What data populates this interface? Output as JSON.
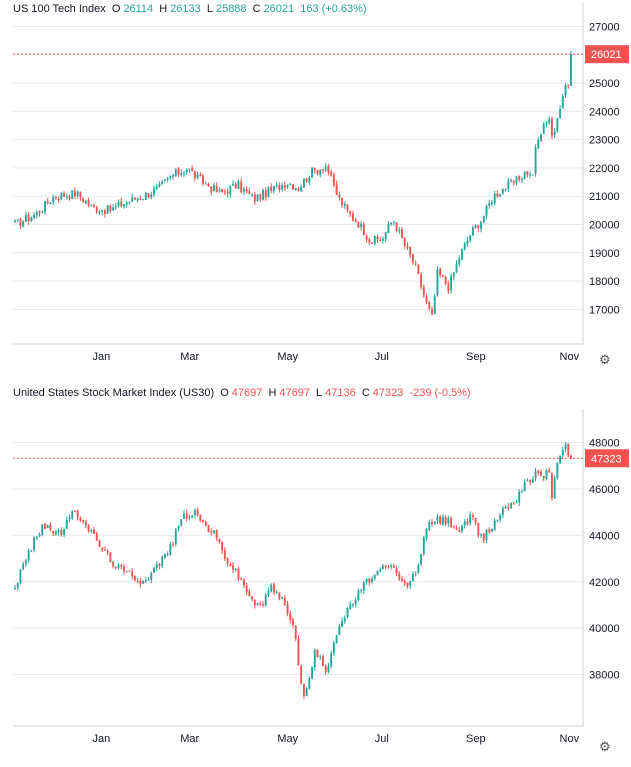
{
  "colors": {
    "up": "#26a69a",
    "down": "#ef5350",
    "grid": "#e6e9ef",
    "axis": "#cdd1d8",
    "text": "#131722",
    "badge": "#ef5350"
  },
  "chart_data": [
    {
      "type": "candlestick",
      "title": "US 100 Tech Index",
      "ohlc": {
        "o_label": "O",
        "o": "26114",
        "h_label": "H",
        "h": "26133",
        "l_label": "L",
        "l": "25888",
        "c_label": "C",
        "c": "26021",
        "change": "163 (+0.63%)"
      },
      "y_ticks": [
        17000,
        18000,
        19000,
        20000,
        21000,
        22000,
        23000,
        24000,
        25000,
        26000,
        27000
      ],
      "x_ticks": [
        "Jan",
        "Mar",
        "May",
        "Jul",
        "Sep",
        "Nov"
      ],
      "ylim": [
        16200,
        27300
      ],
      "last_price": 26021,
      "last_price_label": "26021",
      "closes": [
        20000,
        20400,
        21000,
        21100,
        20600,
        20500,
        20800,
        21000,
        21300,
        21700,
        22000,
        21600,
        21100,
        21400,
        20900,
        21200,
        21500,
        21300,
        21800,
        22100,
        21500,
        21000,
        20400,
        20000,
        19400,
        19500,
        20200,
        19300,
        18500,
        17200,
        16700,
        18300,
        17800,
        18900,
        19700,
        20200,
        21000,
        21300,
        21500,
        21700,
        21900,
        21600,
        22500,
        22900,
        23200,
        23400,
        23700,
        23900,
        23200,
        23100,
        23700,
        24200,
        24600,
        24800,
        25000,
        24600,
        25200,
        26000,
        26021
      ],
      "x_norm": [
        0,
        0.04,
        0.07,
        0.11,
        0.14,
        0.17,
        0.2,
        0.23,
        0.26,
        0.28,
        0.31,
        0.33,
        0.37,
        0.4,
        0.43,
        0.46,
        0.49,
        0.51,
        0.53,
        0.56,
        0.57,
        0.58,
        0.6,
        0.62,
        0.64,
        0.66,
        0.68,
        0.7,
        0.72,
        0.74,
        0.75,
        0.76,
        0.78,
        0.8,
        0.82,
        0.84,
        0.86,
        0.88,
        0.9,
        0.91,
        0.92,
        0.93,
        0.935,
        0.94,
        0.945,
        0.95,
        0.955,
        0.96,
        0.965,
        0.97,
        0.975,
        0.98,
        0.984,
        0.988,
        0.991,
        0.993,
        0.996,
        0.998,
        1
      ]
    },
    {
      "type": "candlestick",
      "title": "United States Stock Market Index (US30)",
      "ohlc": {
        "o_label": "O",
        "o": "47697",
        "h_label": "H",
        "h": "47697",
        "l_label": "L",
        "l": "47136",
        "c_label": "C",
        "c": "47323",
        "change": "-239 (-0.5%)"
      },
      "y_ticks": [
        38000,
        40000,
        42000,
        44000,
        46000,
        48000
      ],
      "x_ticks": [
        "Jan",
        "Mar",
        "May",
        "Jul",
        "Sep",
        "Nov"
      ],
      "ylim": [
        36300,
        48800
      ],
      "last_price": 47323,
      "last_price_label": "47323",
      "closes": [
        41800,
        43000,
        44500,
        44000,
        44900,
        44800,
        44000,
        43000,
        42500,
        42300,
        42000,
        42800,
        43500,
        44800,
        45000,
        44500,
        44000,
        43000,
        42300,
        41500,
        40800,
        41800,
        41200,
        40300,
        38500,
        36900,
        39000,
        38200,
        40000,
        40800,
        41600,
        42200,
        42500,
        42600,
        41800,
        42300,
        44300,
        44700,
        44600,
        44200,
        44800,
        43800,
        44500,
        45200,
        45500,
        46000,
        46500,
        46300,
        46800,
        46600,
        46900,
        45700,
        46400,
        46900,
        47500,
        47800,
        47323
      ],
      "x_norm": [
        0,
        0.02,
        0.05,
        0.08,
        0.1,
        0.12,
        0.14,
        0.17,
        0.19,
        0.21,
        0.23,
        0.26,
        0.28,
        0.3,
        0.32,
        0.34,
        0.36,
        0.38,
        0.4,
        0.42,
        0.44,
        0.46,
        0.48,
        0.5,
        0.51,
        0.52,
        0.54,
        0.56,
        0.58,
        0.6,
        0.62,
        0.64,
        0.66,
        0.68,
        0.7,
        0.72,
        0.74,
        0.76,
        0.78,
        0.8,
        0.82,
        0.84,
        0.86,
        0.88,
        0.9,
        0.91,
        0.92,
        0.93,
        0.94,
        0.95,
        0.96,
        0.965,
        0.97,
        0.975,
        0.98,
        0.99,
        1
      ]
    }
  ]
}
